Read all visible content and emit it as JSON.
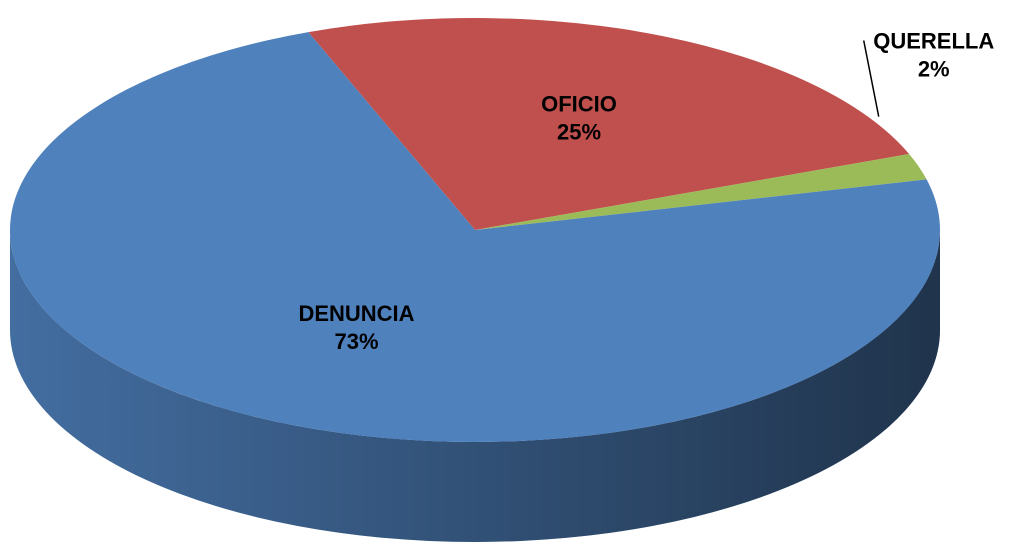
{
  "chart_data": {
    "type": "pie",
    "categories": [
      "DENUNCIA",
      "OFICIO",
      "QUERELLA"
    ],
    "values": [
      73,
      25,
      2
    ],
    "value_labels": [
      "73%",
      "25%",
      "2%"
    ],
    "colors": [
      "#4f81bd",
      "#c0504d",
      "#9bbb59"
    ]
  }
}
